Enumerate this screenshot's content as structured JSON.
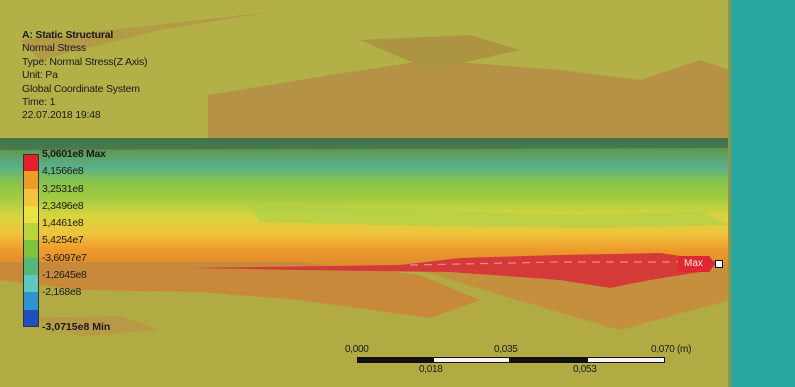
{
  "info": {
    "title": "A: Static Structural",
    "result": "Normal Stress",
    "type": "Type: Normal Stress(Z Axis)",
    "unit": "Unit: Pa",
    "coord": "Global Coordinate System",
    "time": "Time: 1",
    "timestamp": "22.07.2018 19:48"
  },
  "legend": {
    "max_label": "5,0601e8 Max",
    "min_label": "-3,0715e8 Min",
    "values": [
      "4,1566e8",
      "3,2531e8",
      "2,3496e8",
      "1,4461e8",
      "5,4254e7",
      "-3,6097e7",
      "-1,2645e8",
      "-2,168e8"
    ],
    "colors": [
      "#e3202b",
      "#ee9b2a",
      "#f2c33b",
      "#eae245",
      "#bbd43e",
      "#7ec23e",
      "#56b77b",
      "#5fc7bf",
      "#2f93d1",
      "#214fbf"
    ]
  },
  "probe": {
    "label": "Max"
  },
  "scale": {
    "top_labels": [
      "0,000",
      "0,035",
      "0,070 (m)"
    ],
    "bottom_labels": [
      "0,018",
      "0,053"
    ]
  }
}
